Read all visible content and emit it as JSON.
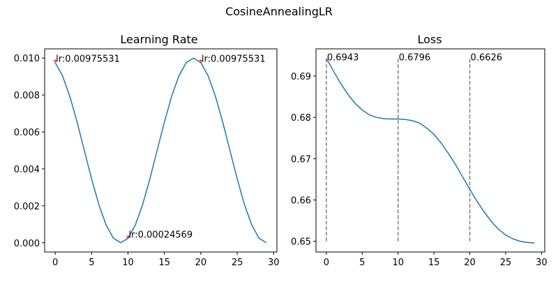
{
  "suptitle": "CosineAnnealingLR",
  "chart_data": [
    {
      "type": "line",
      "title": "Learning Rate",
      "xlabel": "",
      "ylabel": "",
      "xlim": [
        -1.45,
        30.45
      ],
      "ylim": [
        -0.0005,
        0.0105
      ],
      "xticks": [
        "0",
        "5",
        "10",
        "15",
        "20",
        "25",
        "30"
      ],
      "yticks": [
        "0.000",
        "0.002",
        "0.004",
        "0.006",
        "0.008",
        "0.010"
      ],
      "x": [
        0,
        1,
        2,
        3,
        4,
        5,
        6,
        7,
        8,
        9,
        10,
        11,
        12,
        13,
        14,
        15,
        16,
        17,
        18,
        19,
        20,
        21,
        22,
        23,
        24,
        25,
        26,
        27,
        28,
        29
      ],
      "values": [
        0.009755,
        0.009045,
        0.007939,
        0.006545,
        0.005,
        0.003455,
        0.002061,
        0.000955,
        0.000245,
        0,
        0.000245,
        0.000955,
        0.002061,
        0.003455,
        0.005,
        0.006545,
        0.007939,
        0.009045,
        0.009755,
        0.01,
        0.009755,
        0.009045,
        0.007939,
        0.006545,
        0.005,
        0.003455,
        0.002061,
        0.000955,
        0.000245,
        0
      ],
      "line_color": "#1f77b4",
      "markers": [
        {
          "x": 0,
          "y": 0.00975531,
          "label": "lr:0.00975531"
        },
        {
          "x": 10,
          "y": 0.00024569,
          "label": "lr:0.00024569"
        },
        {
          "x": 20,
          "y": 0.00975531,
          "label": "lr:0.00975531"
        }
      ],
      "marker_color": "#ff0000"
    },
    {
      "type": "line",
      "title": "Loss",
      "xlabel": "",
      "ylabel": "",
      "xlim": [
        -1.45,
        30.45
      ],
      "ylim": [
        0.6474,
        0.6966
      ],
      "xticks": [
        "0",
        "5",
        "10",
        "15",
        "20",
        "25",
        "30"
      ],
      "yticks": [
        "0.65",
        "0.66",
        "0.67",
        "0.68",
        "0.69"
      ],
      "x": [
        0,
        1,
        2,
        3,
        4,
        5,
        6,
        7,
        8,
        9,
        10,
        11,
        12,
        13,
        14,
        15,
        16,
        17,
        18,
        19,
        20,
        21,
        22,
        23,
        24,
        25,
        26,
        27,
        28,
        29
      ],
      "values": [
        0.6943,
        0.6912,
        0.6882,
        0.6856,
        0.6834,
        0.6818,
        0.6806,
        0.68,
        0.6797,
        0.6796,
        0.6796,
        0.6795,
        0.6792,
        0.6786,
        0.6774,
        0.6759,
        0.6738,
        0.6713,
        0.6686,
        0.6656,
        0.6626,
        0.6597,
        0.6571,
        0.6548,
        0.6529,
        0.6515,
        0.6506,
        0.65,
        0.6497,
        0.6496
      ],
      "line_color": "#1f77b4",
      "vlines": [
        {
          "x": 0,
          "ymin": 0.65,
          "ymax": 0.6943,
          "label": "0.6943"
        },
        {
          "x": 10,
          "ymin": 0.65,
          "ymax": 0.6943,
          "label": "0.6796"
        },
        {
          "x": 20,
          "ymin": 0.65,
          "ymax": 0.6943,
          "label": "0.6626"
        }
      ],
      "vline_color": "#808080"
    }
  ]
}
